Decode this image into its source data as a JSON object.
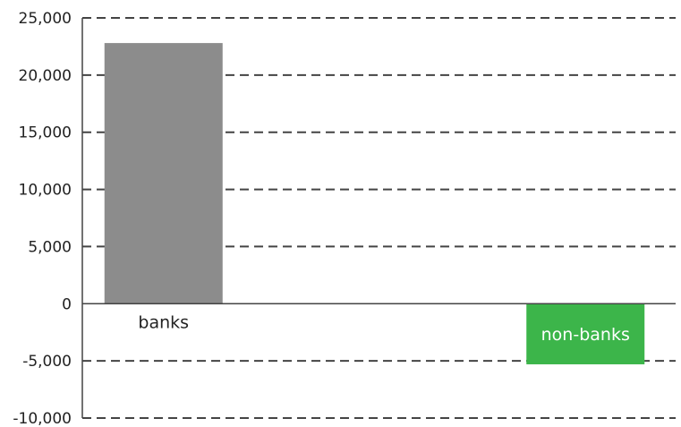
{
  "chart_data": {
    "type": "bar",
    "title": "",
    "xlabel": "",
    "ylabel": "",
    "categories": [
      "banks",
      "non-banks"
    ],
    "values": [
      22800,
      -5300
    ],
    "colors": [
      "#8c8c8c",
      "#3cb54a"
    ],
    "label_colors": [
      "#222222",
      "#ffffff"
    ],
    "ylim": [
      -10000,
      25000
    ],
    "yticks": [
      25000,
      20000,
      15000,
      10000,
      5000,
      0,
      -5000,
      -10000
    ],
    "ytick_labels": [
      "25,000",
      "20,000",
      "15,000",
      "10,000",
      "5,000",
      "0",
      "-5,000",
      "-10,000"
    ],
    "grid": true,
    "legend": "none"
  }
}
